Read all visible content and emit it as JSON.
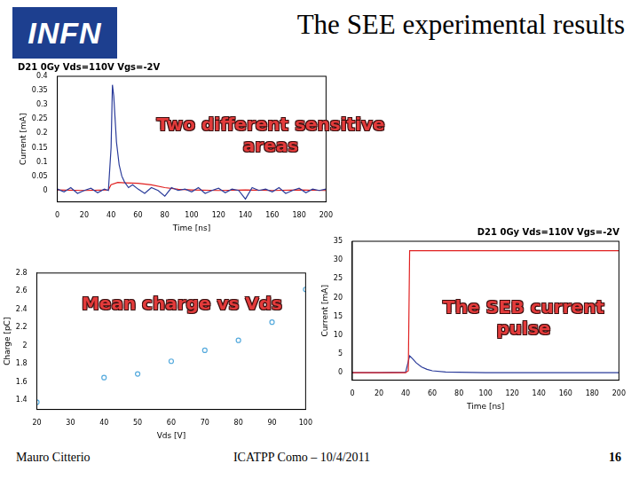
{
  "header": {
    "logo": "INFN",
    "title": "The SEE experimental results"
  },
  "footer": {
    "author": "Mauro Citterio",
    "event": "ICATPP Como – 10/4/2011",
    "page": "16"
  },
  "chart_data": [
    {
      "type": "line",
      "title": "D21 0Gy Vds=110V Vgs=-2V",
      "annotation": "Two different sensitive areas",
      "x_label": "Time [ns]",
      "y_label": "Current [mA]",
      "xlim": [
        0,
        200
      ],
      "xticks": [
        0,
        20,
        40,
        60,
        80,
        100,
        120,
        140,
        160,
        180,
        200
      ],
      "ylim": [
        -0.04,
        0.4
      ],
      "yticks": [
        0,
        0.05,
        0.1,
        0.15,
        0.2,
        0.25,
        0.3,
        0.35,
        0.4
      ],
      "grid": false,
      "series": [
        {
          "color": "#2a3b9a",
          "marker": "none",
          "line_style": "solid",
          "x": [
            0,
            5,
            10,
            15,
            20,
            25,
            30,
            35,
            38,
            40,
            41,
            42,
            43,
            44,
            46,
            48,
            50,
            53,
            56,
            60,
            65,
            70,
            75,
            80,
            85,
            90,
            95,
            100,
            105,
            110,
            115,
            120,
            125,
            130,
            135,
            140,
            145,
            150,
            155,
            160,
            165,
            170,
            175,
            180,
            185,
            190,
            195,
            200
          ],
          "values": [
            0.005,
            -0.005,
            0.01,
            -0.01,
            0.0,
            0.008,
            -0.008,
            0.005,
            0.0,
            0.15,
            0.37,
            0.33,
            0.25,
            0.17,
            0.09,
            0.05,
            0.03,
            0.01,
            0.02,
            0.005,
            -0.01,
            0.01,
            0.0,
            -0.02,
            0.01,
            0.0,
            0.005,
            -0.005,
            0.01,
            -0.01,
            0.0,
            0.008,
            -0.008,
            0.005,
            0.0,
            -0.03,
            0.01,
            0.0,
            0.005,
            -0.005,
            0.01,
            -0.01,
            0.0,
            0.008,
            -0.008,
            0.005,
            0.0,
            0.005
          ]
        },
        {
          "color": "#e02020",
          "marker": "none",
          "line_style": "solid",
          "x": [
            0,
            20,
            38,
            40,
            45,
            50,
            60,
            70,
            80,
            90,
            100,
            120,
            140,
            160,
            180,
            200
          ],
          "values": [
            0.002,
            0.0,
            0.002,
            0.02,
            0.028,
            0.027,
            0.025,
            0.02,
            0.01,
            0.004,
            0.002,
            0.0,
            0.002,
            0.0,
            0.002,
            0.0
          ]
        }
      ]
    },
    {
      "type": "scatter",
      "annotation": "Mean charge vs Vds",
      "x_label": "Vds [V]",
      "y_label": "Charge [pC]",
      "xlim": [
        20,
        100
      ],
      "xticks": [
        20,
        30,
        40,
        50,
        60,
        70,
        80,
        90,
        100
      ],
      "ylim": [
        1.3,
        2.8
      ],
      "yticks": [
        1.4,
        1.6,
        1.8,
        2,
        2.2,
        2.4,
        2.6,
        2.8
      ],
      "grid": false,
      "series": [
        {
          "color": "#55aadd",
          "marker": "circle",
          "x": [
            20,
            40,
            50,
            60,
            70,
            80,
            90,
            100
          ],
          "values": [
            1.38,
            1.65,
            1.69,
            1.83,
            1.95,
            2.06,
            2.26,
            2.62
          ]
        }
      ]
    },
    {
      "type": "line",
      "title": "D21 0Gy Vds=110V Vgs=-2V",
      "annotation": "The SEB current pulse",
      "x_label": "Time [ns]",
      "y_label": "Current [mA]",
      "xlim": [
        0,
        200
      ],
      "xticks": [
        0,
        20,
        40,
        60,
        80,
        100,
        120,
        140,
        160,
        180,
        200
      ],
      "ylim": [
        -2,
        35
      ],
      "yticks": [
        0,
        5,
        10,
        15,
        20,
        25,
        30,
        35
      ],
      "grid": false,
      "series": [
        {
          "color": "#e02020",
          "marker": "none",
          "line_style": "solid",
          "x": [
            0,
            20,
            40,
            42,
            43,
            60,
            100,
            150,
            200
          ],
          "values": [
            0,
            0,
            0,
            0.5,
            32.5,
            32.5,
            32.5,
            32.5,
            32.5
          ]
        },
        {
          "color": "#2a3b9a",
          "marker": "none",
          "line_style": "solid",
          "x": [
            0,
            20,
            40,
            42,
            43,
            45,
            48,
            52,
            56,
            60,
            70,
            80,
            100,
            140,
            180,
            200
          ],
          "values": [
            0,
            0,
            0.1,
            3.0,
            4.5,
            3.8,
            2.6,
            1.5,
            0.9,
            0.5,
            0.2,
            0.1,
            0,
            0,
            0,
            0
          ]
        }
      ]
    }
  ]
}
